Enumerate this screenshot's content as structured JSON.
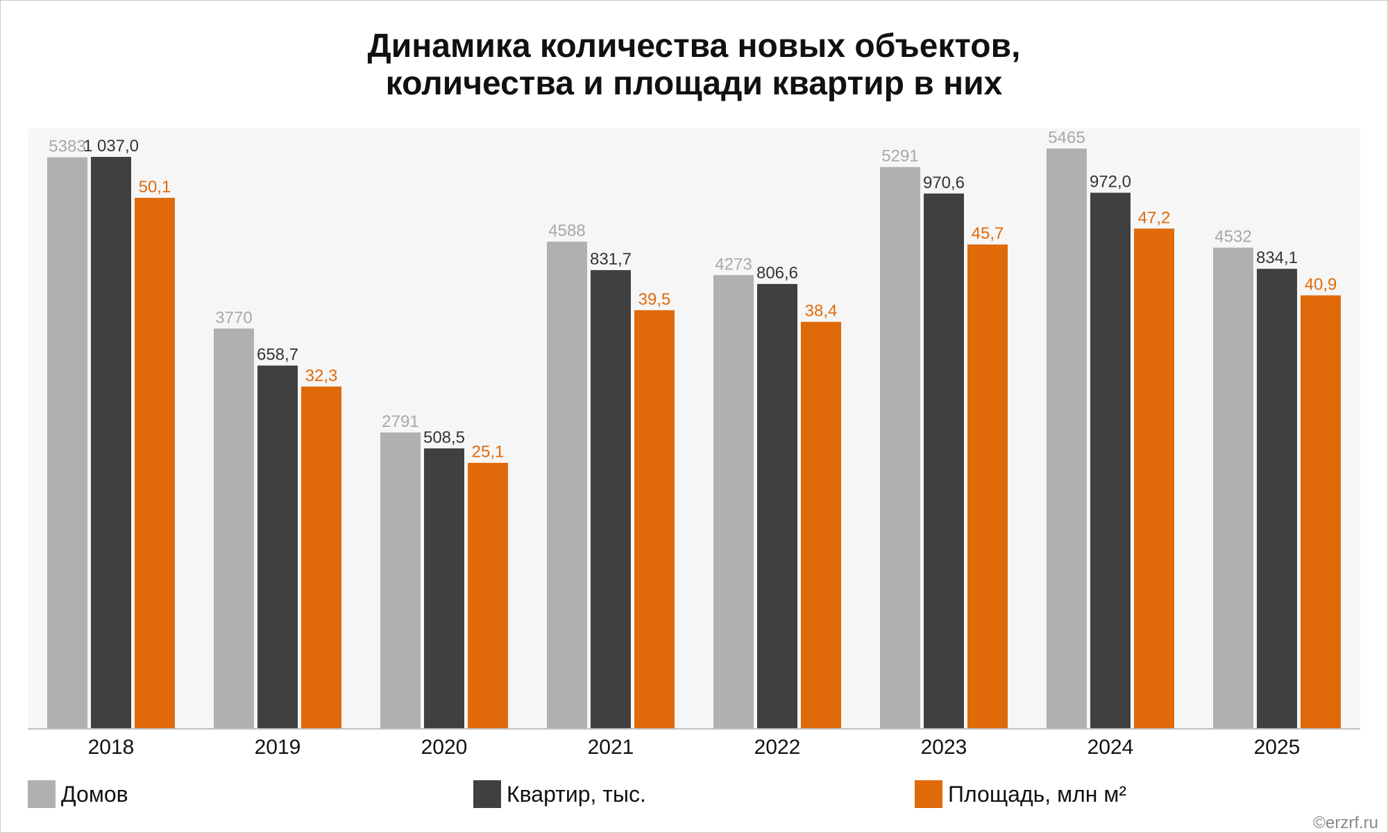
{
  "chart_data": {
    "type": "bar",
    "title_lines": [
      "Динамика количества новых объектов,",
      "количества и площади квартир в них"
    ],
    "categories": [
      "2018",
      "2019",
      "2020",
      "2021",
      "2022",
      "2023",
      "2024",
      "2025"
    ],
    "series": [
      {
        "name": "Домов",
        "values": [
          5383,
          3770,
          2791,
          4588,
          4273,
          5291,
          5465,
          4532
        ],
        "labels": [
          "5383",
          "3770",
          "2791",
          "4588",
          "4273",
          "5291",
          "5465",
          "4532"
        ],
        "color": "#b0b0b0",
        "label_color": "#a8a8a8"
      },
      {
        "name": "Квартир, тыс.",
        "values": [
          1037.0,
          658.7,
          508.5,
          831.7,
          806.6,
          970.6,
          972.0,
          834.1
        ],
        "labels": [
          "1 037,0",
          "658,7",
          "508,5",
          "831,7",
          "806,6",
          "970,6",
          "972,0",
          "834,1"
        ],
        "color": "#404040",
        "label_color": "#333333"
      },
      {
        "name": "Площадь, млн м²",
        "values": [
          50.1,
          32.3,
          25.1,
          39.5,
          38.4,
          45.7,
          47.2,
          40.9
        ],
        "labels": [
          "50,1",
          "32,3",
          "25,1",
          "39,5",
          "38,4",
          "45,7",
          "47,2",
          "40,9"
        ],
        "color": "#e06a0a",
        "label_color": "#e06a0a"
      }
    ],
    "legend_position": "bottom",
    "grid": false
  },
  "credit": "©erzrf.ru"
}
